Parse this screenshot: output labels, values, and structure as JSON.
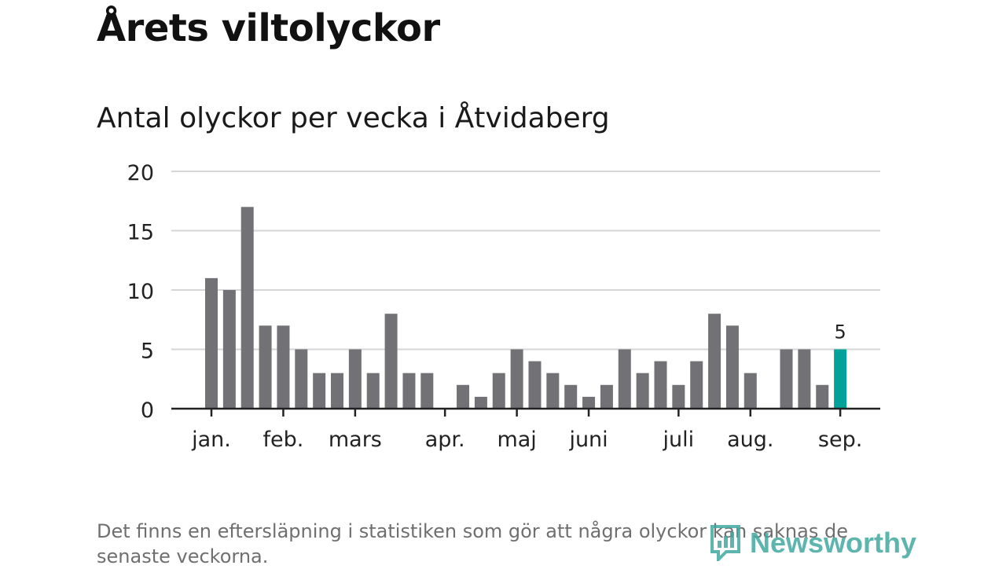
{
  "title": "Årets viltolyckor",
  "subtitle": "Antal olyckor per vecka i Åtvidaberg",
  "note": "Det finns en eftersläpning i statistiken som gör att några olyckor kan saknas de senaste veckorna.",
  "logo": {
    "text": "Newsworthy",
    "icon": "newsworthy-logo-icon",
    "color": "#41a9a0"
  },
  "colors": {
    "bar": "#727176",
    "highlight": "#00a29a",
    "grid": "#d6d6d6",
    "axis": "#222222"
  },
  "chart_data": {
    "type": "bar",
    "title": "Antal olyckor per vecka i Åtvidaberg",
    "xlabel": "",
    "ylabel": "",
    "ylim": [
      0,
      20
    ],
    "yticks": [
      0,
      5,
      10,
      15,
      20
    ],
    "grid": true,
    "values": [
      11,
      10,
      17,
      7,
      7,
      5,
      3,
      3,
      5,
      3,
      8,
      3,
      3,
      0,
      2,
      1,
      3,
      5,
      4,
      3,
      2,
      1,
      2,
      5,
      3,
      4,
      2,
      4,
      8,
      7,
      3,
      0,
      5,
      5,
      2,
      5
    ],
    "highlight_index": 35,
    "data_labels": [
      {
        "index": 35,
        "text": "5"
      }
    ],
    "month_labels": [
      {
        "label": "jan.",
        "week_index": 0
      },
      {
        "label": "feb.",
        "week_index": 4
      },
      {
        "label": "mars",
        "week_index": 8
      },
      {
        "label": "apr.",
        "week_index": 13
      },
      {
        "label": "maj",
        "week_index": 17
      },
      {
        "label": "juni",
        "week_index": 21
      },
      {
        "label": "juli",
        "week_index": 26
      },
      {
        "label": "aug.",
        "week_index": 30
      },
      {
        "label": "sep.",
        "week_index": 35
      }
    ]
  }
}
